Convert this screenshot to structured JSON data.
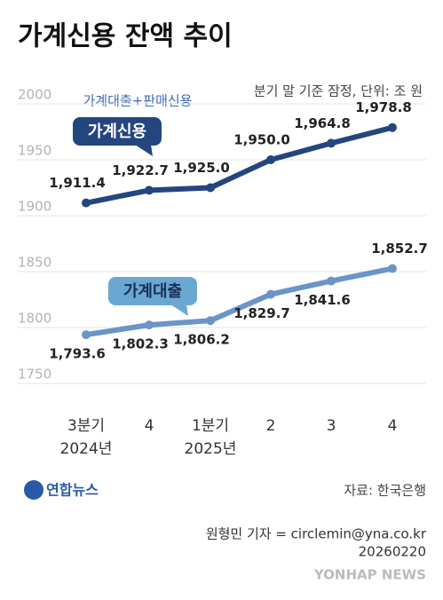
{
  "chart_data": {
    "type": "line",
    "title": "가계신용 잔액 추이",
    "subtitle": "분기 말 기준 잠정, 단위: 조 원",
    "annotation": "가계대출+판매신용",
    "categories": [
      "3분기",
      "4",
      "1분기",
      "2",
      "3",
      "4"
    ],
    "category_sublabels": [
      "2024년",
      null,
      "2025년",
      null,
      null,
      null
    ],
    "series": [
      {
        "name": "가계신용",
        "color": "#24467e",
        "values": [
          1911.4,
          1922.7,
          1925.0,
          1950.0,
          1964.8,
          1978.8
        ],
        "value_labels": [
          "1,911.4",
          "1,922.7",
          "1,925.0",
          "1,950.0",
          "1,964.8",
          "1,978.8"
        ]
      },
      {
        "name": "가계대출",
        "color": "#6b94c9",
        "values": [
          1793.6,
          1802.3,
          1806.2,
          1829.7,
          1841.6,
          1852.7
        ],
        "value_labels": [
          "1,793.6",
          "1,802.3",
          "1,806.2",
          "1,829.7",
          "1,841.6",
          "1,852.7"
        ]
      }
    ],
    "ylim": [
      1750,
      2000
    ],
    "yticks": [
      1750,
      1800,
      1850,
      1900,
      1950,
      2000
    ],
    "grid": true,
    "source": "자료: 한국은행",
    "logo": "연합뉴스",
    "credit": "원형민 기자 = circlemin@yna.co.kr",
    "date": "20260220",
    "watermark": "YONHAP NEWS"
  }
}
